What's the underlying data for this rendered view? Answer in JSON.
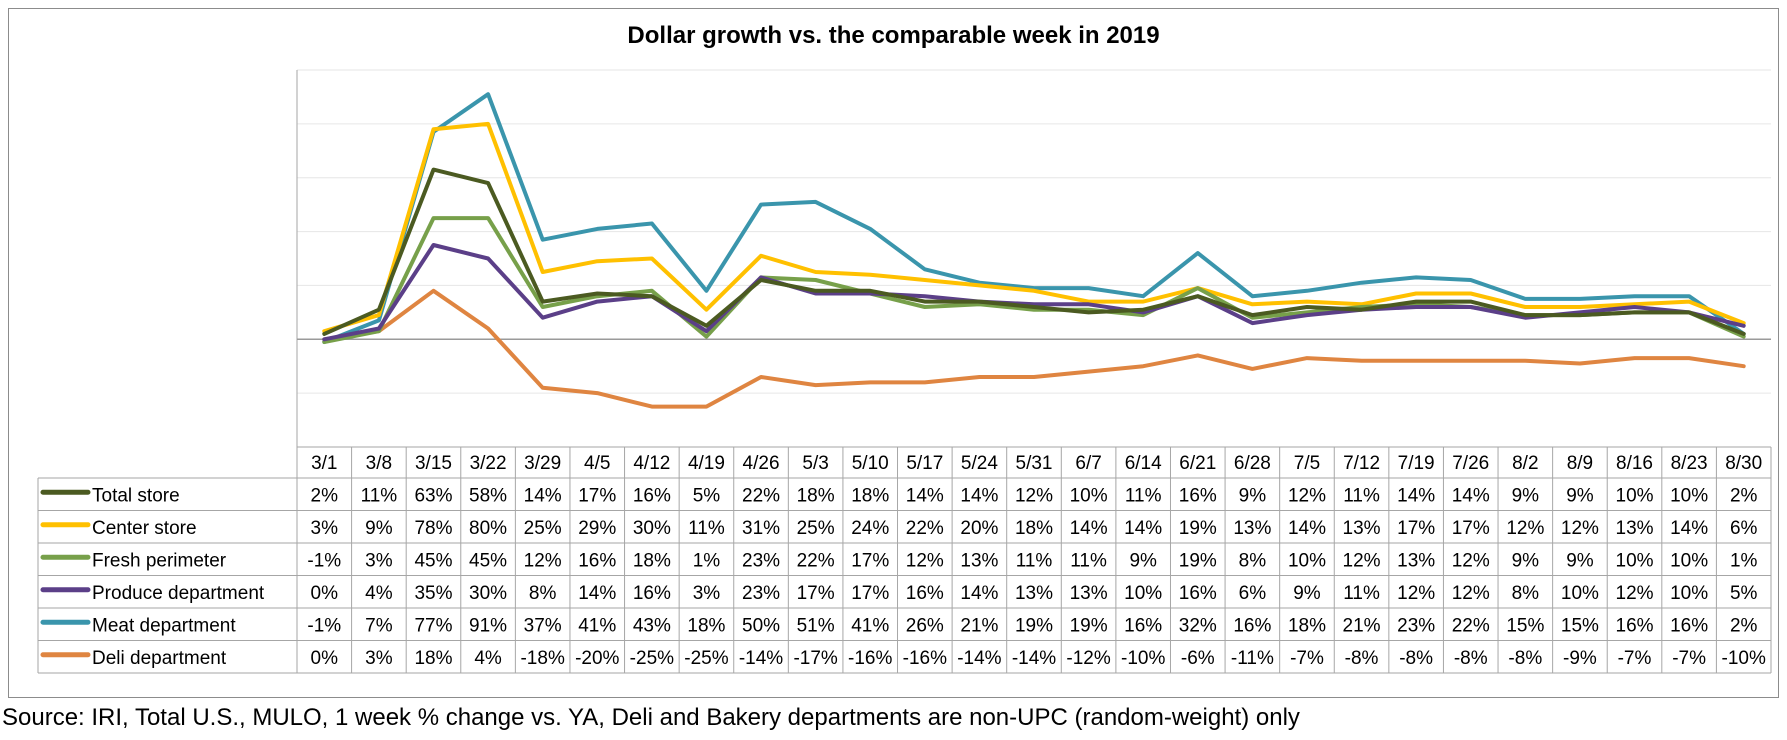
{
  "chart_data": {
    "type": "line",
    "title": "Dollar growth vs. the comparable week in 2019",
    "xlabel": "",
    "ylabel": "",
    "ylim": [
      -40,
      100
    ],
    "grid": true,
    "legend": "data-table-left",
    "categories": [
      "3/1",
      "3/8",
      "3/15",
      "3/22",
      "3/29",
      "4/5",
      "4/12",
      "4/19",
      "4/26",
      "5/3",
      "5/10",
      "5/17",
      "5/24",
      "5/31",
      "6/7",
      "6/14",
      "6/21",
      "6/28",
      "7/5",
      "7/12",
      "7/19",
      "7/26",
      "8/2",
      "8/9",
      "8/16",
      "8/23",
      "8/30"
    ],
    "series": [
      {
        "name": "Total store",
        "color": "#4b5a21",
        "values": [
          2,
          11,
          63,
          58,
          14,
          17,
          16,
          5,
          22,
          18,
          18,
          14,
          14,
          12,
          10,
          11,
          16,
          9,
          12,
          11,
          14,
          14,
          9,
          9,
          10,
          10,
          2
        ],
        "labels": [
          "2%",
          "11%",
          "63%",
          "58%",
          "14%",
          "17%",
          "16%",
          "5%",
          "22%",
          "18%",
          "18%",
          "14%",
          "14%",
          "12%",
          "10%",
          "11%",
          "16%",
          "9%",
          "12%",
          "11%",
          "14%",
          "14%",
          "9%",
          "9%",
          "10%",
          "10%",
          "2%"
        ]
      },
      {
        "name": "Center store",
        "color": "#ffc000",
        "values": [
          3,
          9,
          78,
          80,
          25,
          29,
          30,
          11,
          31,
          25,
          24,
          22,
          20,
          18,
          14,
          14,
          19,
          13,
          14,
          13,
          17,
          17,
          12,
          12,
          13,
          14,
          6
        ],
        "labels": [
          "3%",
          "9%",
          "78%",
          "80%",
          "25%",
          "29%",
          "30%",
          "11%",
          "31%",
          "25%",
          "24%",
          "22%",
          "20%",
          "18%",
          "14%",
          "14%",
          "19%",
          "13%",
          "14%",
          "13%",
          "17%",
          "17%",
          "12%",
          "12%",
          "13%",
          "14%",
          "6%"
        ]
      },
      {
        "name": "Fresh perimeter",
        "color": "#77a04a",
        "values": [
          -1,
          3,
          45,
          45,
          12,
          16,
          18,
          1,
          23,
          22,
          17,
          12,
          13,
          11,
          11,
          9,
          19,
          8,
          10,
          12,
          13,
          12,
          9,
          9,
          10,
          10,
          1
        ],
        "labels": [
          "-1%",
          "3%",
          "45%",
          "45%",
          "12%",
          "16%",
          "18%",
          "1%",
          "23%",
          "22%",
          "17%",
          "12%",
          "13%",
          "11%",
          "11%",
          "9%",
          "19%",
          "8%",
          "10%",
          "12%",
          "13%",
          "12%",
          "9%",
          "9%",
          "10%",
          "10%",
          "1%"
        ]
      },
      {
        "name": "Produce department",
        "color": "#5b3f88",
        "values": [
          0,
          4,
          35,
          30,
          8,
          14,
          16,
          3,
          23,
          17,
          17,
          16,
          14,
          13,
          13,
          10,
          16,
          6,
          9,
          11,
          12,
          12,
          8,
          10,
          12,
          10,
          5
        ],
        "labels": [
          "0%",
          "4%",
          "35%",
          "30%",
          "8%",
          "14%",
          "16%",
          "3%",
          "23%",
          "17%",
          "17%",
          "16%",
          "14%",
          "13%",
          "13%",
          "10%",
          "16%",
          "6%",
          "9%",
          "11%",
          "12%",
          "12%",
          "8%",
          "10%",
          "12%",
          "10%",
          "5%"
        ]
      },
      {
        "name": "Meat department",
        "color": "#3a95ac",
        "values": [
          -1,
          7,
          77,
          91,
          37,
          41,
          43,
          18,
          50,
          51,
          41,
          26,
          21,
          19,
          19,
          16,
          32,
          16,
          18,
          21,
          23,
          22,
          15,
          15,
          16,
          16,
          2
        ],
        "labels": [
          "-1%",
          "7%",
          "77%",
          "91%",
          "37%",
          "41%",
          "43%",
          "18%",
          "50%",
          "51%",
          "41%",
          "26%",
          "21%",
          "19%",
          "19%",
          "16%",
          "32%",
          "16%",
          "18%",
          "21%",
          "23%",
          "22%",
          "15%",
          "15%",
          "16%",
          "16%",
          "2%"
        ]
      },
      {
        "name": "Deli department",
        "color": "#df8541",
        "values": [
          0,
          3,
          18,
          4,
          -18,
          -20,
          -25,
          -25,
          -14,
          -17,
          -16,
          -16,
          -14,
          -14,
          -12,
          -10,
          -6,
          -11,
          -7,
          -8,
          -8,
          -8,
          -8,
          -9,
          -7,
          -7,
          -10
        ],
        "labels": [
          "0%",
          "3%",
          "18%",
          "4%",
          "-18%",
          "-20%",
          "-25%",
          "-25%",
          "-14%",
          "-17%",
          "-16%",
          "-16%",
          "-14%",
          "-14%",
          "-12%",
          "-10%",
          "-6%",
          "-11%",
          "-7%",
          "-8%",
          "-8%",
          "-8%",
          "-8%",
          "-9%",
          "-7%",
          "-7%",
          "-10%"
        ]
      }
    ]
  },
  "source_note": "Source: IRI, Total U.S., MULO, 1 week % change vs. YA, Deli and Bakery departments are non-UPC (random-weight) only"
}
